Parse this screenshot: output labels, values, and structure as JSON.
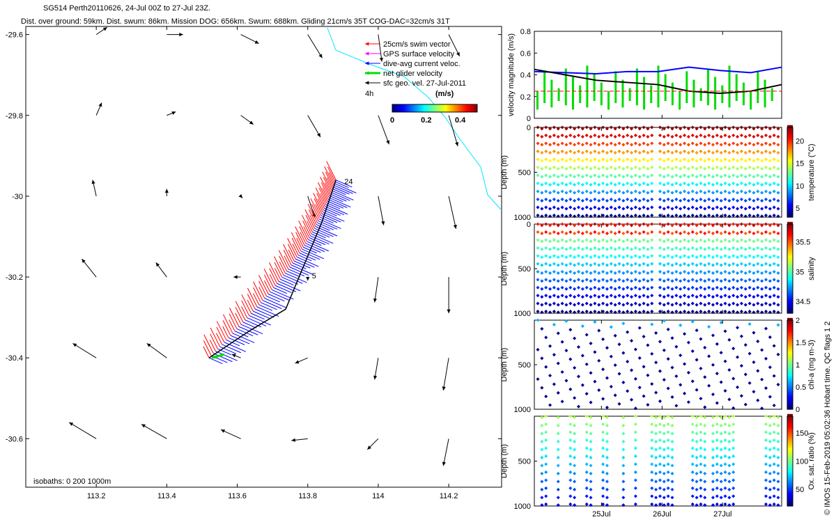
{
  "header": {
    "line1": "SG514 Perth20110626, 24-Jul 00Z to 27-Jul 23Z.",
    "line2": "Dist. over ground: 59km. Dist. swum: 86km. Mission DOG: 656km. Swum: 688km. Gliding 21cm/s 35T COG-DAC=32cm/s 31T"
  },
  "colors": {
    "swim": "#ff0000",
    "gps": "#ff00ff",
    "dac": "#0000ff",
    "net": "#00dd00",
    "sfc": "#000000",
    "coast": "#00e5ff"
  },
  "chart_data": [
    {
      "type": "scatter",
      "name": "map",
      "xlim": [
        113.0,
        114.35
      ],
      "ylim": [
        -30.72,
        -29.58
      ],
      "xticks": [
        "113.2",
        "113.4",
        "113.6",
        "113.8",
        "114",
        "114.2"
      ],
      "yticks": [
        "-29.6",
        "-29.8",
        "-30",
        "-30.2",
        "-30.4",
        "-30.6"
      ],
      "legend": [
        {
          "label": "25cm/s swim vector",
          "color": "#ff0000"
        },
        {
          "label": "GPS surface velocity",
          "color": "#ff00ff"
        },
        {
          "label": "dive-avg current veloc.",
          "color": "#0000ff"
        },
        {
          "label": "net glider velocity",
          "color": "#00dd00"
        },
        {
          "label": "sfc geo. vel. 27-Jul-2011",
          "color": "#000000"
        }
      ],
      "scale_label": "4h",
      "colorbar": {
        "title": "(m/s)",
        "ticks": [
          "0",
          "0.2",
          "0.4"
        ],
        "range": [
          0,
          0.5
        ]
      },
      "isobaths_label": "isobaths: 0   200  1000m",
      "track_end_label": "24",
      "track_mid_label": "5",
      "track_start": [
        113.52,
        -30.4
      ],
      "track_end": [
        113.88,
        -29.96
      ],
      "geo_vectors": [
        {
          "lon": 113.2,
          "lat": -29.6,
          "u": 0.06,
          "v": 0.04
        },
        {
          "lon": 113.4,
          "lat": -29.6,
          "u": 0.09,
          "v": 0.0
        },
        {
          "lon": 113.61,
          "lat": -29.6,
          "u": 0.1,
          "v": -0.05
        },
        {
          "lon": 113.8,
          "lat": -29.6,
          "u": 0.08,
          "v": -0.13
        },
        {
          "lon": 114.0,
          "lat": -29.6,
          "u": 0.02,
          "v": -0.15
        },
        {
          "lon": 114.2,
          "lat": -29.6,
          "u": 0.06,
          "v": -0.12
        },
        {
          "lon": 113.2,
          "lat": -29.8,
          "u": 0.03,
          "v": 0.07
        },
        {
          "lon": 113.4,
          "lat": -29.8,
          "u": 0.05,
          "v": 0.02
        },
        {
          "lon": 113.61,
          "lat": -29.8,
          "u": 0.07,
          "v": -0.05
        },
        {
          "lon": 113.8,
          "lat": -29.8,
          "u": 0.07,
          "v": -0.12
        },
        {
          "lon": 114.0,
          "lat": -29.8,
          "u": 0.06,
          "v": -0.16
        },
        {
          "lon": 114.2,
          "lat": -29.8,
          "u": 0.05,
          "v": -0.17
        },
        {
          "lon": 113.2,
          "lat": -30.0,
          "u": -0.02,
          "v": 0.09
        },
        {
          "lon": 113.4,
          "lat": -30.0,
          "u": 0.0,
          "v": 0.04
        },
        {
          "lon": 113.61,
          "lat": -30.0,
          "u": 0.01,
          "v": -0.01
        },
        {
          "lon": 113.8,
          "lat": -30.0,
          "u": 0.04,
          "v": -0.12
        },
        {
          "lon": 114.0,
          "lat": -30.0,
          "u": 0.03,
          "v": -0.16
        },
        {
          "lon": 114.2,
          "lat": -30.0,
          "u": 0.04,
          "v": -0.18
        },
        {
          "lon": 113.2,
          "lat": -30.2,
          "u": -0.08,
          "v": 0.1
        },
        {
          "lon": 113.4,
          "lat": -30.2,
          "u": -0.06,
          "v": 0.08
        },
        {
          "lon": 113.61,
          "lat": -30.2,
          "u": -0.04,
          "v": 0.0
        },
        {
          "lon": 113.8,
          "lat": -30.2,
          "u": 0.0,
          "v": -0.02
        },
        {
          "lon": 114.0,
          "lat": -30.2,
          "u": -0.02,
          "v": -0.14
        },
        {
          "lon": 114.2,
          "lat": -30.2,
          "u": 0.0,
          "v": -0.2
        },
        {
          "lon": 113.2,
          "lat": -30.4,
          "u": -0.13,
          "v": 0.08
        },
        {
          "lon": 113.4,
          "lat": -30.4,
          "u": -0.11,
          "v": 0.08
        },
        {
          "lon": 113.61,
          "lat": -30.4,
          "u": -0.05,
          "v": 0.02
        },
        {
          "lon": 113.8,
          "lat": -30.4,
          "u": -0.07,
          "v": -0.03
        },
        {
          "lon": 114.0,
          "lat": -30.4,
          "u": -0.02,
          "v": -0.12
        },
        {
          "lon": 114.2,
          "lat": -30.4,
          "u": -0.03,
          "v": -0.18
        },
        {
          "lon": 113.2,
          "lat": -30.6,
          "u": -0.15,
          "v": 0.09
        },
        {
          "lon": 113.4,
          "lat": -30.6,
          "u": -0.14,
          "v": 0.08
        },
        {
          "lon": 113.61,
          "lat": -30.6,
          "u": -0.11,
          "v": 0.05
        },
        {
          "lon": 113.8,
          "lat": -30.6,
          "u": -0.09,
          "v": -0.01
        },
        {
          "lon": 114.0,
          "lat": -30.6,
          "u": -0.06,
          "v": -0.06
        },
        {
          "lon": 114.2,
          "lat": -30.6,
          "u": -0.03,
          "v": -0.15
        }
      ]
    },
    {
      "type": "line",
      "name": "velocity",
      "ylabel": "velocity magnitude (m/s)",
      "ylim": [
        0,
        0.8
      ],
      "yticks": [
        "0",
        "0.2",
        "0.4",
        "0.6",
        "0.8"
      ],
      "xlim": [
        24.0,
        28.0
      ],
      "series": [
        {
          "color": "#0000ff",
          "x": [
            24.0,
            24.5,
            25.0,
            25.5,
            26.0,
            26.5,
            27.0,
            27.5,
            28.0
          ],
          "values": [
            0.43,
            0.42,
            0.41,
            0.43,
            0.43,
            0.47,
            0.44,
            0.42,
            0.47
          ]
        },
        {
          "color": "#000000",
          "x": [
            24.0,
            24.5,
            25.0,
            25.5,
            26.0,
            26.5,
            27.0,
            27.5,
            28.0
          ],
          "values": [
            0.45,
            0.4,
            0.35,
            0.33,
            0.31,
            0.25,
            0.23,
            0.25,
            0.31
          ]
        },
        {
          "color": "#ff0000",
          "x": [
            24.0,
            28.0
          ],
          "values": [
            0.25,
            0.25
          ]
        }
      ],
      "net_velocity_range": [
        0.08,
        0.65
      ]
    },
    {
      "type": "heatmap",
      "name": "temperature",
      "ylabel": "Depth (m)",
      "yticks": [
        "0",
        "500",
        "1000"
      ],
      "colorbar_label": "temperature (°C)",
      "colorbar_ticks": [
        "5",
        "10",
        "15",
        "20"
      ],
      "range": [
        3,
        23
      ]
    },
    {
      "type": "heatmap",
      "name": "salinity",
      "ylabel": "Depth (m)",
      "yticks": [
        "0",
        "500",
        "1000"
      ],
      "colorbar_label": "salinity",
      "colorbar_ticks": [
        "34.5",
        "35",
        "35.5"
      ],
      "range": [
        34.3,
        35.8
      ]
    },
    {
      "type": "scatter",
      "name": "chla",
      "ylabel": "Depth (m)",
      "yticks": [
        "500",
        "1000"
      ],
      "colorbar_label": "chl-a (mg m-3)",
      "colorbar_ticks": [
        "0",
        "0.5",
        "1",
        "1.5",
        "2"
      ],
      "range": [
        0,
        2
      ]
    },
    {
      "type": "scatter",
      "name": "oxygen",
      "ylabel": "Depth (m)",
      "yticks": [
        "500",
        "1000"
      ],
      "colorbar_label": "Ox. sat. ratio (%)",
      "colorbar_ticks": [
        "50",
        "100",
        "150"
      ],
      "range": [
        20,
        180
      ],
      "xticks": [
        "25Jul",
        "26Jul",
        "27Jul"
      ]
    }
  ],
  "footer_vertical": "© IMOS 15-Feb-2019 05:02:36 Hobart time. QC flags 1  2"
}
